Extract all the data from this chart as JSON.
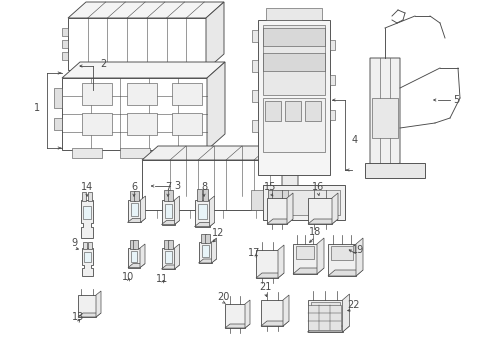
{
  "bg_color": "#ffffff",
  "line_color": "#4a4a4a",
  "fig_width": 4.89,
  "fig_height": 3.6,
  "dpi": 100,
  "label_fs": 7,
  "lw_main": 0.65,
  "lw_detail": 0.4,
  "lw_leader": 0.6
}
